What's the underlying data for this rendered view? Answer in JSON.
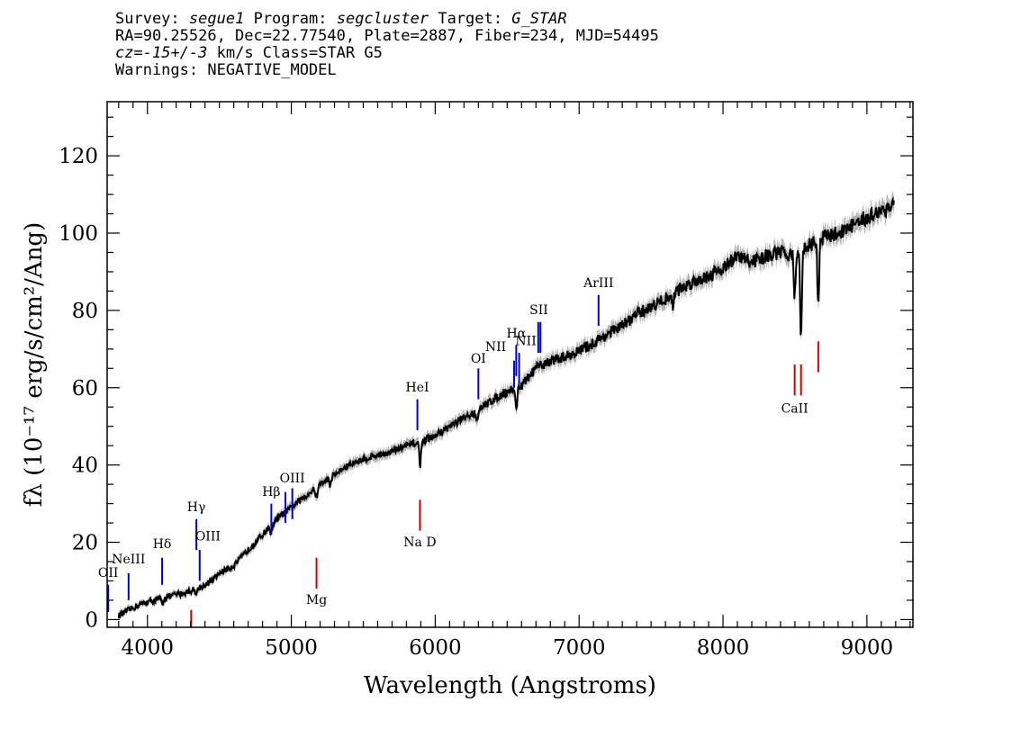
{
  "header": {
    "survey_label": "Survey:",
    "survey": "segue1",
    "program_label": "Program:",
    "program": "segcluster",
    "target_label": "Target:",
    "target": "G_STAR",
    "line2": "RA=90.25526, Dec=22.77540, Plate=2887, Fiber=234, MJD=54495",
    "cz_label": "cz",
    "cz_eq": "=",
    "cz_value": "-15+/-3",
    "cz_rest": " km/s Class=STAR G5",
    "warnings": "Warnings: NEGATIVE_MODEL"
  },
  "chart_data": {
    "type": "line",
    "xlabel": "Wavelength (Angstroms)",
    "ylabel": "fλ (10⁻¹⁷ erg/s/cm²/Ang)",
    "xlim": [
      3720,
      9320
    ],
    "ylim": [
      -2,
      134
    ],
    "x_ticks": [
      4000,
      5000,
      6000,
      7000,
      8000,
      9000
    ],
    "y_ticks": [
      0,
      20,
      40,
      60,
      80,
      100,
      120
    ],
    "colors": {
      "spectrum": "#000000",
      "error_band": "#b4b4b4",
      "emission": "#0000cc",
      "absorption": "#cc0000"
    },
    "series": [
      {
        "x": [
          3800,
          3850,
          3900,
          3950,
          4000,
          4050,
          4100,
          4150,
          4200,
          4250,
          4300,
          4350,
          4400,
          4450,
          4500,
          4600,
          4700,
          4800,
          4900,
          5000,
          5100,
          5200,
          5300,
          5400,
          5500,
          5600,
          5700,
          5800,
          5900,
          6000,
          6100,
          6200,
          6300,
          6400,
          6500,
          6600,
          6700,
          6800,
          6900,
          7000,
          7100,
          7200,
          7300,
          7400,
          7500,
          7600,
          7700,
          7800,
          7900,
          8000,
          8100,
          8200,
          8300,
          8400,
          8500,
          8600,
          8700,
          8800,
          8900,
          9000,
          9100,
          9190
        ],
        "y": [
          1,
          2,
          3,
          4,
          4.5,
          5,
          5.5,
          6,
          6.5,
          6.8,
          7.5,
          8,
          9,
          10,
          12,
          14,
          18,
          22,
          26,
          29,
          32,
          35,
          37.5,
          40,
          41.5,
          42.5,
          43.5,
          45,
          46,
          47.5,
          50,
          52,
          54,
          57,
          59,
          60.5,
          65,
          67,
          68,
          69.5,
          71.5,
          74,
          76,
          79,
          81,
          83,
          85.5,
          87.5,
          89,
          91,
          94,
          92.5,
          94,
          95,
          94.5,
          97,
          99,
          100,
          102,
          104,
          106,
          107
        ]
      }
    ],
    "absorption_dips": [
      {
        "x": 4105,
        "depth": 1.5
      },
      {
        "x": 4340,
        "depth": 1.5
      },
      {
        "x": 4860,
        "depth": 2
      },
      {
        "x": 5175,
        "depth": 3
      },
      {
        "x": 5270,
        "depth": 2
      },
      {
        "x": 5895,
        "depth": 6
      },
      {
        "x": 6290,
        "depth": 2
      },
      {
        "x": 6563,
        "depth": 6
      },
      {
        "x": 7650,
        "depth": 3
      },
      {
        "x": 8498,
        "depth": 11
      },
      {
        "x": 8542,
        "depth": 23
      },
      {
        "x": 8662,
        "depth": 18
      },
      {
        "x": 8950,
        "depth": 2
      }
    ],
    "lines": [
      {
        "label": "OII",
        "x": 3727,
        "y0": 2,
        "y1": 9,
        "color": "blue",
        "lx": 3727,
        "ly": 11
      },
      {
        "label": "NeIII",
        "x": 3869,
        "y0": 5,
        "y1": 12,
        "color": "blue",
        "lx": 3869,
        "ly": 14.5
      },
      {
        "label": "Hδ",
        "x": 4102,
        "y0": 9,
        "y1": 16,
        "color": "blue",
        "lx": 4102,
        "ly": 18.5
      },
      {
        "label": "Hγ",
        "x": 4340,
        "y0": 18,
        "y1": 26,
        "color": "blue",
        "lx": 4340,
        "ly": 28
      },
      {
        "label": "OIII",
        "x": 4363,
        "y0": 10,
        "y1": 18,
        "color": "blue",
        "lx": 4420,
        "ly": 20.5
      },
      {
        "label": "Hβ",
        "x": 4861,
        "y0": 22,
        "y1": 30,
        "color": "blue",
        "lx": 4861,
        "ly": 32
      },
      {
        "label": "OIII",
        "x": 4959,
        "y0": 25,
        "y1": 33,
        "color": "blue",
        "lx": 5007,
        "ly": 35.5
      },
      {
        "label": "OIII",
        "x": 5007,
        "y0": 26,
        "y1": 34,
        "color": "blue",
        "lx": null,
        "ly": null
      },
      {
        "label": "HeI",
        "x": 5876,
        "y0": 49,
        "y1": 57,
        "color": "blue",
        "lx": 5876,
        "ly": 59
      },
      {
        "label": "OI",
        "x": 6300,
        "y0": 57,
        "y1": 65,
        "color": "blue",
        "lx": 6300,
        "ly": 66.5
      },
      {
        "label": "NII",
        "x": 6548,
        "y0": 60,
        "y1": 67,
        "color": "blue",
        "lx": 6420,
        "ly": 69.5
      },
      {
        "label": "Hα",
        "x": 6563,
        "y0": 63,
        "y1": 71,
        "color": "blue",
        "lx": 6563,
        "ly": 73
      },
      {
        "label": "NII",
        "x": 6583,
        "y0": 61,
        "y1": 69,
        "color": "blue",
        "lx": 6630,
        "ly": 71
      },
      {
        "label": "SII",
        "x": 6716,
        "y0": 69,
        "y1": 77,
        "color": "blue",
        "lx": 6720,
        "ly": 79
      },
      {
        "label": "SII",
        "x": 6731,
        "y0": 69,
        "y1": 77,
        "color": "blue",
        "lx": null,
        "ly": null
      },
      {
        "label": "ArIII",
        "x": 7135,
        "y0": 76,
        "y1": 84,
        "color": "blue",
        "lx": 7135,
        "ly": 86
      },
      {
        "label": "",
        "x": 4304,
        "y0": -2,
        "y1": 2.5,
        "color": "red",
        "lx": null,
        "ly": null
      },
      {
        "label": "Mg",
        "x": 5175,
        "y0": 8,
        "y1": 16,
        "color": "red",
        "lx": 5175,
        "ly": 4
      },
      {
        "label": "Na D",
        "x": 5894,
        "y0": 23,
        "y1": 31,
        "color": "red",
        "lx": 5894,
        "ly": 19
      },
      {
        "label": "CaII",
        "x": 8498,
        "y0": 58,
        "y1": 66,
        "color": "red",
        "lx": 8498,
        "ly": 53.5
      },
      {
        "label": "",
        "x": 8542,
        "y0": 58,
        "y1": 66,
        "color": "red",
        "lx": null,
        "ly": null
      },
      {
        "label": "",
        "x": 8662,
        "y0": 64,
        "y1": 72,
        "color": "red",
        "lx": null,
        "ly": null
      }
    ]
  }
}
